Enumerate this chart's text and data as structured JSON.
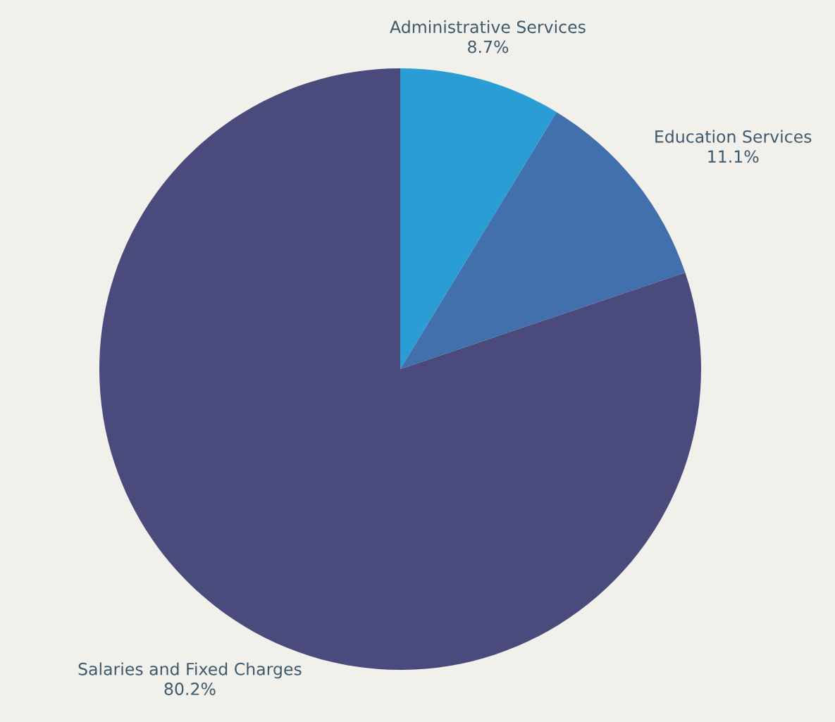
{
  "chart_data": {
    "type": "pie",
    "categories": [
      "Administrative Services",
      "Education Services",
      "Salaries and Fixed Charges"
    ],
    "values": [
      8.7,
      11.1,
      80.2
    ],
    "colors": [
      "#2a9dd4",
      "#4170ad",
      "#4a4a7d"
    ],
    "value_labels": [
      "8.7%",
      "11.1%",
      "80.2%"
    ]
  }
}
